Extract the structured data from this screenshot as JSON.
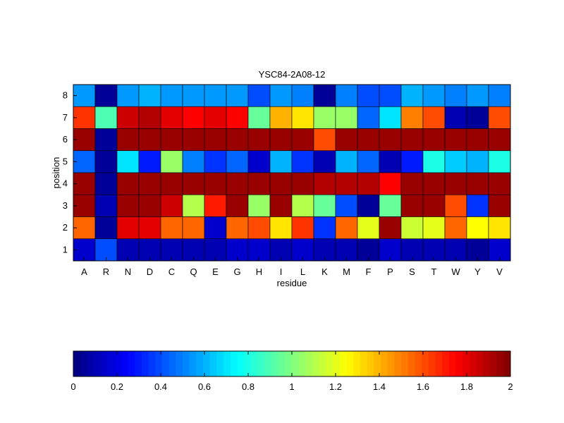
{
  "chart_data": {
    "type": "heatmap",
    "title": "YSC84-2A08-12",
    "xlabel": "residue",
    "ylabel": "position",
    "x_categories": [
      "A",
      "R",
      "N",
      "D",
      "C",
      "Q",
      "E",
      "G",
      "H",
      "I",
      "L",
      "K",
      "M",
      "F",
      "P",
      "S",
      "T",
      "W",
      "Y",
      "V"
    ],
    "y_categories": [
      "8",
      "7",
      "6",
      "5",
      "4",
      "3",
      "2",
      "1"
    ],
    "values": [
      [
        0.55,
        0.05,
        0.55,
        0.6,
        0.55,
        0.55,
        0.55,
        0.55,
        0.4,
        0.55,
        0.5,
        0.05,
        0.5,
        0.4,
        0.4,
        0.6,
        0.55,
        0.5,
        0.55,
        0.5
      ],
      [
        1.65,
        0.9,
        1.85,
        1.9,
        1.8,
        1.75,
        1.8,
        1.75,
        0.95,
        1.4,
        1.3,
        1.05,
        1.05,
        0.45,
        0.7,
        1.5,
        1.6,
        0.1,
        0.05,
        1.6
      ],
      [
        1.95,
        0.05,
        1.95,
        1.95,
        1.95,
        1.95,
        1.95,
        1.95,
        1.95,
        1.95,
        1.95,
        1.6,
        1.95,
        1.95,
        1.95,
        1.95,
        1.95,
        1.95,
        1.95,
        1.95
      ],
      [
        0.45,
        0.05,
        0.7,
        0.3,
        1.05,
        0.5,
        0.35,
        0.45,
        0.15,
        0.6,
        0.35,
        0.1,
        0.6,
        0.45,
        0.1,
        0.3,
        0.8,
        0.65,
        0.6,
        0.8
      ],
      [
        1.95,
        0.05,
        1.95,
        1.95,
        1.95,
        1.95,
        1.95,
        1.95,
        1.95,
        1.95,
        1.95,
        1.9,
        1.9,
        1.9,
        1.75,
        1.95,
        1.95,
        1.95,
        1.95,
        1.95
      ],
      [
        1.95,
        0.1,
        1.95,
        1.95,
        1.85,
        1.1,
        1.7,
        1.95,
        1.05,
        1.95,
        1.1,
        0.95,
        0.4,
        0.05,
        0.95,
        1.95,
        1.95,
        1.6,
        0.35,
        1.95
      ],
      [
        1.55,
        0.05,
        1.8,
        1.8,
        1.55,
        1.55,
        0.15,
        1.55,
        1.6,
        1.3,
        1.65,
        0.35,
        1.55,
        1.2,
        1.95,
        1.15,
        1.2,
        1.55,
        1.25,
        1.3
      ],
      [
        0.15,
        0.4,
        0.1,
        0.1,
        0.1,
        0.1,
        0.1,
        0.15,
        0.15,
        0.1,
        0.15,
        0.1,
        0.1,
        0.05,
        0.15,
        0.1,
        0.1,
        0.1,
        0.05,
        0.15
      ]
    ],
    "colorbar": {
      "min": 0,
      "max": 2,
      "ticks": [
        "0",
        "0.2",
        "0.4",
        "0.6",
        "0.8",
        "1",
        "1.2",
        "1.4",
        "1.6",
        "1.8",
        "2"
      ],
      "placement": "bottom",
      "colormap": "jet"
    },
    "grid": false
  }
}
